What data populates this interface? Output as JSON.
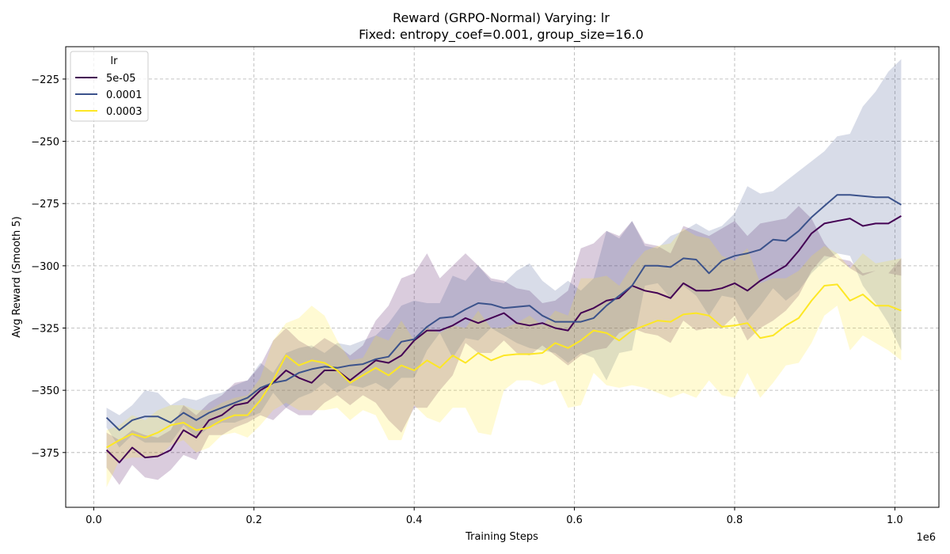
{
  "chart_data": {
    "type": "line",
    "title": "Reward (GRPO-Normal) Varying: lr",
    "subtitle": "Fixed: entropy_coef=0.001, group_size=16.0",
    "xlabel": "Training Steps",
    "ylabel": "Avg Reward (Smooth 5)",
    "x_offset_label": "1e6",
    "xlim": [
      -0.035,
      1.055
    ],
    "ylim": [
      -397,
      -212
    ],
    "x_ticks": [
      0.0,
      0.2,
      0.4,
      0.6,
      0.8,
      1.0
    ],
    "x_tick_labels": [
      "0.0",
      "0.2",
      "0.4",
      "0.6",
      "0.8",
      "1.0"
    ],
    "y_ticks": [
      -375,
      -350,
      -325,
      -300,
      -275,
      -250,
      -225
    ],
    "y_tick_labels": [
      "−375",
      "−350",
      "−325",
      "−300",
      "−275",
      "−250",
      "−225"
    ],
    "grid": true,
    "legend_title": "lr",
    "legend_position": "top-left",
    "x": [
      0.016,
      0.032,
      0.048,
      0.064,
      0.08,
      0.096,
      0.112,
      0.128,
      0.144,
      0.16,
      0.176,
      0.192,
      0.208,
      0.224,
      0.24,
      0.256,
      0.272,
      0.288,
      0.304,
      0.32,
      0.336,
      0.352,
      0.368,
      0.384,
      0.4,
      0.416,
      0.432,
      0.448,
      0.464,
      0.48,
      0.496,
      0.512,
      0.528,
      0.544,
      0.56,
      0.576,
      0.592,
      0.608,
      0.624,
      0.64,
      0.656,
      0.672,
      0.688,
      0.704,
      0.72,
      0.736,
      0.752,
      0.768,
      0.784,
      0.8,
      0.816,
      0.832,
      0.848,
      0.864,
      0.88,
      0.896,
      0.912,
      0.928,
      0.944,
      0.96,
      0.976,
      0.992,
      1.008
    ],
    "series": [
      {
        "name": "5e-05",
        "color": "#440154",
        "mean": [
          -374,
          -379,
          -373,
          -377,
          -376.5,
          -374,
          -366,
          -369,
          -362,
          -360,
          -356,
          -355,
          -350,
          -347,
          -342,
          -345,
          -347,
          -342,
          -342,
          -346,
          -342,
          -338,
          -339,
          -336,
          -330,
          -326,
          -326,
          -324,
          -321,
          -323,
          -321,
          -319,
          -323,
          -324,
          -323,
          -325,
          -326,
          -319,
          -317,
          -314,
          -313,
          -308,
          -310,
          -311,
          -313,
          -307,
          -310,
          -310,
          -309,
          -307,
          -310,
          -306,
          -303,
          -300,
          -294,
          -287,
          -283,
          -282,
          -281,
          -284,
          -283,
          -283,
          -280
        ],
        "upper": [
          -367,
          -370,
          -366,
          -368,
          -369,
          -366,
          -356,
          -360,
          -355,
          -352,
          -347,
          -346,
          -340,
          -330,
          -325,
          -330,
          -333,
          -329,
          -332,
          -336,
          -332,
          -322,
          -316,
          -305,
          -303,
          -295,
          -305,
          -300,
          -295,
          -300,
          -305,
          -306,
          -309,
          -310,
          -315,
          -314,
          -310,
          -293,
          -291,
          -286,
          -288,
          -282,
          -291,
          -292,
          -295,
          -284,
          -286,
          -288,
          -285,
          -282,
          -288,
          -283,
          -282,
          -281,
          -276,
          -281,
          -291,
          -297,
          -298,
          -303,
          -302,
          -303,
          -297
        ],
        "lower": [
          -381,
          -388,
          -380,
          -385,
          -386,
          -382,
          -376,
          -378,
          -368,
          -368,
          -365,
          -363,
          -360,
          -362,
          -357,
          -360,
          -360,
          -355,
          -352,
          -356,
          -352,
          -355,
          -362,
          -367,
          -357,
          -357,
          -350,
          -344,
          -331,
          -335,
          -335,
          -330,
          -335,
          -336,
          -332,
          -336,
          -340,
          -336,
          -334,
          -333,
          -327,
          -325,
          -327,
          -328,
          -331,
          -322,
          -326,
          -325,
          -325,
          -320,
          -330,
          -325,
          -322,
          -318,
          -312,
          -302,
          -296,
          -297,
          -301,
          -304,
          -302,
          -303,
          -304
        ]
      },
      {
        "name": "0.0001",
        "color": "#3b528b",
        "mean": [
          -361,
          -366,
          -362,
          -360.5,
          -360.5,
          -363,
          -359,
          -362,
          -359,
          -357,
          -355,
          -353,
          -349,
          -347,
          -346,
          -343,
          -341.5,
          -340.5,
          -341,
          -340,
          -339.5,
          -337.5,
          -336.5,
          -330.5,
          -329.5,
          -324.5,
          -321,
          -320.5,
          -317.5,
          -315,
          -315.5,
          -317,
          -316.5,
          -316,
          -320,
          -322.5,
          -322.5,
          -322.5,
          -321,
          -316,
          -312,
          -308,
          -300,
          -300,
          -300.5,
          -297,
          -297.5,
          -303,
          -298,
          -296,
          -295,
          -293.5,
          -289.5,
          -290,
          -286,
          -280.5,
          -276,
          -271.5,
          -271.5,
          -272,
          -272.5,
          -272.5,
          -275.5
        ],
        "upper": [
          -357,
          -360,
          -356,
          -350,
          -351,
          -356,
          -353,
          -354,
          -352,
          -351,
          -348,
          -346,
          -339,
          -343,
          -335,
          -333,
          -332,
          -335,
          -331,
          -332,
          -330,
          -328,
          -323,
          -316,
          -314,
          -315,
          -315,
          -304,
          -306,
          -300,
          -306,
          -307,
          -302,
          -299,
          -306,
          -310,
          -306,
          -310,
          -305,
          -286,
          -289,
          -282,
          -292,
          -293,
          -288,
          -286,
          -283,
          -286,
          -284,
          -279,
          -268,
          -271,
          -270,
          -266,
          -262,
          -258,
          -254,
          -248,
          -247,
          -236,
          -230,
          -222,
          -217
        ],
        "lower": [
          -365,
          -373,
          -368,
          -371,
          -371,
          -371,
          -364,
          -369,
          -365,
          -363,
          -363,
          -361,
          -359,
          -351,
          -357,
          -353,
          -351,
          -347,
          -351,
          -348,
          -349,
          -347,
          -350,
          -345,
          -345,
          -334,
          -327,
          -337,
          -329,
          -330,
          -325,
          -328,
          -331,
          -333,
          -334,
          -335,
          -339,
          -335,
          -337,
          -346,
          -335,
          -334,
          -308,
          -307,
          -313,
          -308,
          -312,
          -320,
          -312,
          -313,
          -322,
          -316,
          -309,
          -314,
          -310,
          -303,
          -298,
          -295,
          -296,
          -308,
          -315,
          -323,
          -334
        ]
      },
      {
        "name": "0.0003",
        "color": "#fde725",
        "mean": [
          -373,
          -370,
          -367.5,
          -369,
          -367,
          -364,
          -363,
          -366,
          -365,
          -362,
          -360,
          -360,
          -354,
          -346,
          -336,
          -340,
          -338,
          -339,
          -342,
          -347,
          -344,
          -341,
          -344,
          -340,
          -342,
          -338,
          -341,
          -336,
          -339,
          -335,
          -338,
          -336,
          -335.5,
          -335.5,
          -335,
          -331,
          -333,
          -330,
          -326,
          -327,
          -330,
          -326,
          -324,
          -322,
          -322.5,
          -319.5,
          -319,
          -320,
          -324.5,
          -324,
          -323,
          -329,
          -328,
          -324,
          -321,
          -314,
          -308,
          -307.5,
          -314,
          -311.5,
          -316,
          -316,
          -318
        ],
        "upper": [
          -366,
          -364,
          -360,
          -362,
          -358,
          -356,
          -356,
          -358,
          -358,
          -355,
          -353,
          -352,
          -345,
          -330,
          -323,
          -321,
          -316,
          -320,
          -330,
          -338,
          -337,
          -328,
          -330,
          -322,
          -330,
          -325,
          -327,
          -324,
          -325,
          -318,
          -325,
          -325,
          -323,
          -320,
          -324,
          -318,
          -320,
          -305,
          -305,
          -304,
          -308,
          -300,
          -294,
          -292,
          -291,
          -285,
          -288,
          -289,
          -296,
          -298,
          -293,
          -307,
          -305,
          -305,
          -302,
          -296,
          -292,
          -295,
          -301,
          -295,
          -299,
          -298,
          -297
        ],
        "lower": [
          -389,
          -378,
          -377,
          -377,
          -377,
          -372,
          -370,
          -375,
          -373,
          -368,
          -367,
          -369,
          -364,
          -358,
          -355,
          -358,
          -358,
          -358,
          -357,
          -362,
          -358,
          -360,
          -370,
          -370,
          -356,
          -361,
          -363,
          -357,
          -357,
          -367,
          -368,
          -350,
          -346,
          -346,
          -348,
          -346,
          -357,
          -356,
          -343,
          -348,
          -349,
          -348,
          -349,
          -351,
          -353,
          -351,
          -353,
          -346,
          -352,
          -353,
          -343,
          -353,
          -347,
          -340,
          -339,
          -331,
          -320,
          -316,
          -334,
          -328,
          -331,
          -334,
          -338
        ]
      }
    ]
  }
}
